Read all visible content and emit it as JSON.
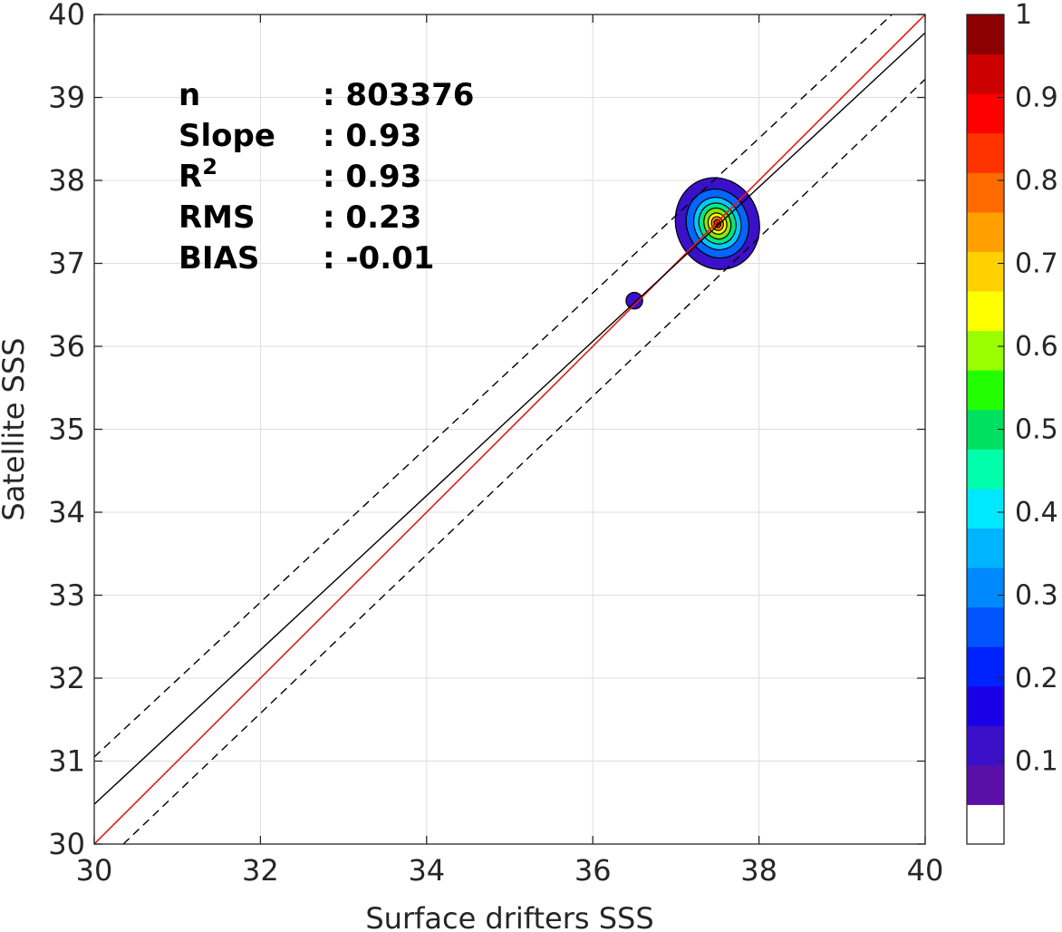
{
  "chart_data": {
    "type": "scatter",
    "subtype": "density-contour",
    "xlabel": "Surface drifters SSS",
    "ylabel": "Satellite SSS",
    "xlim": [
      30,
      40
    ],
    "ylim": [
      30,
      40
    ],
    "xticks": [
      "30",
      "32",
      "34",
      "36",
      "38",
      "40"
    ],
    "yticks": [
      "30",
      "31",
      "32",
      "33",
      "34",
      "35",
      "36",
      "37",
      "38",
      "39",
      "40"
    ],
    "grid": true,
    "stats": [
      {
        "label": "n",
        "value": ": 803376"
      },
      {
        "label": "Slope",
        "value": ": 0.93"
      },
      {
        "label": "R",
        "sup": "2",
        "value": ": 0.93"
      },
      {
        "label": "RMS",
        "value": ": 0.23"
      },
      {
        "label": "BIAS",
        "value": ": -0.01"
      }
    ],
    "lines": [
      {
        "role": "identity",
        "color": "#e41a1c",
        "style": "solid",
        "points": [
          [
            30,
            30
          ],
          [
            40,
            40
          ]
        ]
      },
      {
        "role": "regression",
        "color": "#000000",
        "style": "solid",
        "points": [
          [
            30,
            30.48
          ],
          [
            40,
            39.78
          ]
        ]
      },
      {
        "role": "upper-bound",
        "color": "#000000",
        "style": "dashed",
        "points": [
          [
            30,
            31.05
          ],
          [
            39.6,
            40
          ]
        ]
      },
      {
        "role": "lower-bound",
        "color": "#000000",
        "style": "dashed",
        "points": [
          [
            30.35,
            30
          ],
          [
            40,
            39.22
          ]
        ]
      }
    ],
    "density": {
      "peak": [
        37.5,
        37.48
      ],
      "levels": [
        {
          "level": 0.05,
          "rx": 0.5,
          "ry": 0.56,
          "color": "#3a10c8"
        },
        {
          "level": 0.2,
          "rx": 0.37,
          "ry": 0.42,
          "color": "#0066ff"
        },
        {
          "level": 0.35,
          "rx": 0.28,
          "ry": 0.32,
          "color": "#00c8ff"
        },
        {
          "level": 0.45,
          "rx": 0.22,
          "ry": 0.25,
          "color": "#00e88c"
        },
        {
          "level": 0.55,
          "rx": 0.16,
          "ry": 0.19,
          "color": "#8ce600"
        },
        {
          "level": 0.65,
          "rx": 0.11,
          "ry": 0.13,
          "color": "#ffff00"
        },
        {
          "level": 0.75,
          "rx": 0.07,
          "ry": 0.085,
          "color": "#ff9900"
        },
        {
          "level": 0.85,
          "rx": 0.04,
          "ry": 0.05,
          "color": "#ff2a00"
        },
        {
          "level": 0.95,
          "rx": 0.015,
          "ry": 0.02,
          "color": "#b40000"
        }
      ],
      "secondary": {
        "center": [
          36.5,
          36.55
        ],
        "rx": 0.1,
        "ry": 0.1,
        "color": "#3a10c8"
      }
    },
    "colorbar": {
      "range": [
        0,
        1
      ],
      "ticks": [
        "0.1",
        "0.2",
        "0.3",
        "0.4",
        "0.5",
        "0.6",
        "0.7",
        "0.8",
        "0.9",
        "1"
      ],
      "colors": [
        "#ffffff",
        "#5a10a8",
        "#3a10c8",
        "#1a00e6",
        "#0022ff",
        "#0055ff",
        "#0088ff",
        "#00b4ff",
        "#00e8ff",
        "#00ffaa",
        "#00e060",
        "#22ff00",
        "#99ff00",
        "#ffff00",
        "#ffd000",
        "#ffa000",
        "#ff6a00",
        "#ff3300",
        "#ff0000",
        "#cc0000",
        "#8b0000"
      ]
    }
  }
}
